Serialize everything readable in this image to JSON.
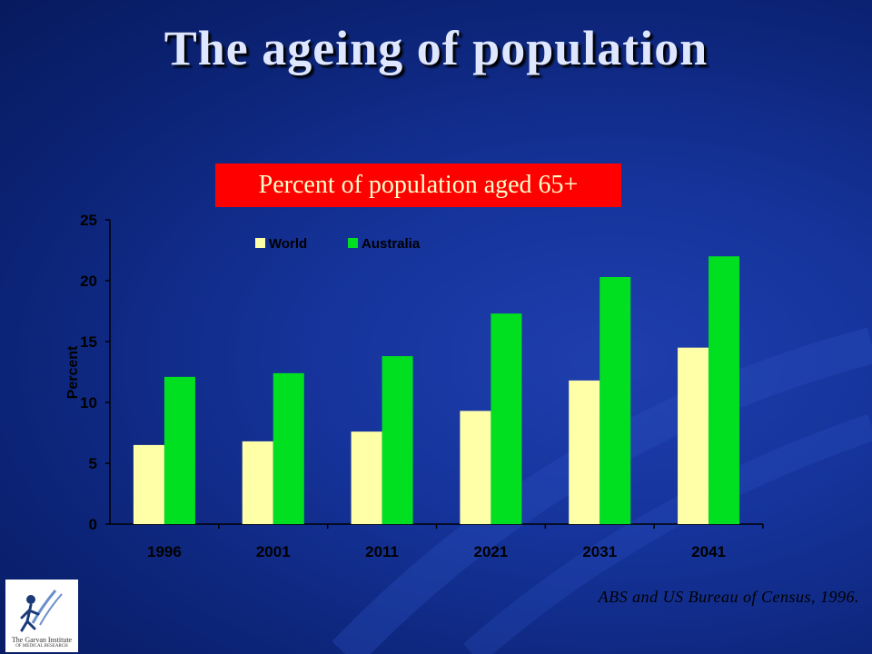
{
  "slide": {
    "title": "The ageing of population",
    "source": "ABS and US Bureau of Census, 1996.",
    "logo_text": "The Garvan Institute",
    "logo_subtext": "OF MEDICAL RESEARCH"
  },
  "colors": {
    "world": "#ffffa8",
    "australia": "#00e020",
    "subtitle_bg": "#ff0000",
    "subtitle_text": "#ffffcc"
  },
  "chart_data": {
    "type": "bar",
    "title": "Percent of population aged 65+",
    "xlabel": "",
    "ylabel": "Percent",
    "categories": [
      "1996",
      "2001",
      "2011",
      "2021",
      "2031",
      "2041"
    ],
    "series": [
      {
        "name": "World",
        "values": [
          6.5,
          6.8,
          7.6,
          9.3,
          11.8,
          14.5
        ]
      },
      {
        "name": "Australia",
        "values": [
          12.1,
          12.4,
          13.8,
          17.3,
          20.3,
          22.0
        ]
      }
    ],
    "ylim": [
      0,
      25
    ],
    "yticks": [
      0,
      5,
      10,
      15,
      20,
      25
    ],
    "grid": false,
    "legend": "top-left"
  }
}
